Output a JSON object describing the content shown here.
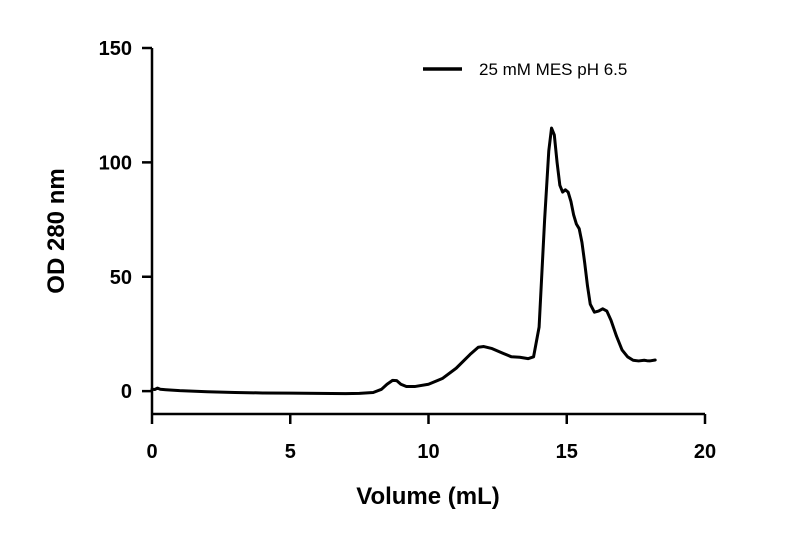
{
  "chart_data": {
    "type": "line",
    "title": "",
    "xlabel": "Volume (mL)",
    "ylabel": "OD 280 nm",
    "xlim": [
      0,
      20
    ],
    "ylim": [
      -10,
      150
    ],
    "x_ticks": [
      0,
      5,
      10,
      15,
      20
    ],
    "y_ticks": [
      0,
      50,
      100,
      150
    ],
    "grid": false,
    "legend_position": "top-right",
    "series": [
      {
        "name": "25 mM MES pH 6.5",
        "color": "#000000",
        "points": [
          [
            0.0,
            0.8
          ],
          [
            0.1,
            0.7
          ],
          [
            0.2,
            1.3
          ],
          [
            0.3,
            0.8
          ],
          [
            0.5,
            0.6
          ],
          [
            1.0,
            0.2
          ],
          [
            2.0,
            -0.3
          ],
          [
            3.0,
            -0.6
          ],
          [
            4.0,
            -0.8
          ],
          [
            5.0,
            -0.9
          ],
          [
            6.0,
            -1.0
          ],
          [
            7.0,
            -1.1
          ],
          [
            7.5,
            -1.0
          ],
          [
            8.0,
            -0.6
          ],
          [
            8.3,
            0.8
          ],
          [
            8.5,
            3.0
          ],
          [
            8.7,
            4.7
          ],
          [
            8.85,
            4.6
          ],
          [
            9.0,
            3.0
          ],
          [
            9.2,
            2.0
          ],
          [
            9.5,
            2.0
          ],
          [
            10.0,
            3.0
          ],
          [
            10.5,
            5.5
          ],
          [
            11.0,
            10.0
          ],
          [
            11.5,
            16.0
          ],
          [
            11.8,
            19.2
          ],
          [
            12.0,
            19.5
          ],
          [
            12.3,
            18.6
          ],
          [
            12.7,
            16.5
          ],
          [
            13.0,
            15.0
          ],
          [
            13.3,
            14.8
          ],
          [
            13.6,
            14.2
          ],
          [
            13.8,
            15.0
          ],
          [
            14.0,
            28.0
          ],
          [
            14.2,
            75.0
          ],
          [
            14.35,
            105.0
          ],
          [
            14.45,
            115.0
          ],
          [
            14.55,
            112.0
          ],
          [
            14.65,
            100.0
          ],
          [
            14.75,
            90.0
          ],
          [
            14.85,
            87.0
          ],
          [
            14.95,
            88.0
          ],
          [
            15.05,
            87.0
          ],
          [
            15.15,
            83.0
          ],
          [
            15.25,
            77.0
          ],
          [
            15.35,
            73.0
          ],
          [
            15.45,
            71.0
          ],
          [
            15.55,
            65.0
          ],
          [
            15.65,
            56.0
          ],
          [
            15.75,
            46.0
          ],
          [
            15.85,
            38.0
          ],
          [
            16.0,
            34.5
          ],
          [
            16.15,
            35.0
          ],
          [
            16.3,
            36.0
          ],
          [
            16.45,
            35.0
          ],
          [
            16.6,
            31.0
          ],
          [
            16.8,
            24.0
          ],
          [
            17.0,
            18.0
          ],
          [
            17.2,
            15.0
          ],
          [
            17.4,
            13.5
          ],
          [
            17.6,
            13.2
          ],
          [
            17.8,
            13.5
          ],
          [
            17.9,
            13.3
          ],
          [
            18.0,
            13.2
          ],
          [
            18.2,
            13.6
          ]
        ]
      }
    ]
  }
}
